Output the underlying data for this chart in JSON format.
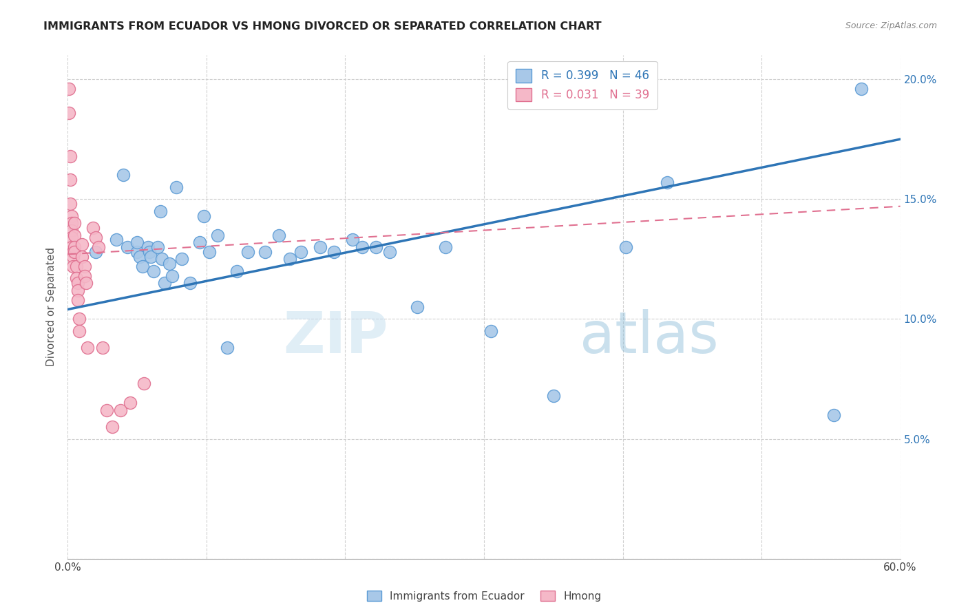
{
  "title": "IMMIGRANTS FROM ECUADOR VS HMONG DIVORCED OR SEPARATED CORRELATION CHART",
  "source": "Source: ZipAtlas.com",
  "ylabel": "Divorced or Separated",
  "legend_ecuador": "Immigrants from Ecuador",
  "legend_hmong": "Hmong",
  "r_ecuador": 0.399,
  "n_ecuador": 46,
  "r_hmong": 0.031,
  "n_hmong": 39,
  "xlim": [
    0.0,
    0.6
  ],
  "ylim": [
    0.0,
    0.21
  ],
  "xticks": [
    0.0,
    0.1,
    0.2,
    0.3,
    0.4,
    0.5,
    0.6
  ],
  "yticks": [
    0.0,
    0.05,
    0.1,
    0.15,
    0.2
  ],
  "ecuador_color": "#a8c8e8",
  "ecuador_edge_color": "#5b9bd5",
  "ecuador_line_color": "#2e75b6",
  "hmong_color": "#f5b8c8",
  "hmong_edge_color": "#e07090",
  "hmong_line_color": "#e07090",
  "watermark_zip": "ZIP",
  "watermark_atlas": "atlas",
  "ecuador_x": [
    0.02,
    0.035,
    0.04,
    0.043,
    0.05,
    0.05,
    0.052,
    0.054,
    0.058,
    0.059,
    0.06,
    0.062,
    0.065,
    0.067,
    0.068,
    0.07,
    0.073,
    0.075,
    0.078,
    0.082,
    0.088,
    0.095,
    0.098,
    0.102,
    0.108,
    0.115,
    0.122,
    0.13,
    0.142,
    0.152,
    0.16,
    0.168,
    0.182,
    0.192,
    0.205,
    0.212,
    0.222,
    0.232,
    0.252,
    0.272,
    0.305,
    0.35,
    0.402,
    0.432,
    0.552,
    0.572
  ],
  "ecuador_y": [
    0.128,
    0.133,
    0.16,
    0.13,
    0.128,
    0.132,
    0.126,
    0.122,
    0.13,
    0.128,
    0.126,
    0.12,
    0.13,
    0.145,
    0.125,
    0.115,
    0.123,
    0.118,
    0.155,
    0.125,
    0.115,
    0.132,
    0.143,
    0.128,
    0.135,
    0.088,
    0.12,
    0.128,
    0.128,
    0.135,
    0.125,
    0.128,
    0.13,
    0.128,
    0.133,
    0.13,
    0.13,
    0.128,
    0.105,
    0.13,
    0.095,
    0.068,
    0.13,
    0.157,
    0.06,
    0.196
  ],
  "hmong_x": [
    0.001,
    0.001,
    0.002,
    0.002,
    0.002,
    0.003,
    0.003,
    0.003,
    0.003,
    0.003,
    0.004,
    0.004,
    0.004,
    0.005,
    0.005,
    0.005,
    0.005,
    0.006,
    0.006,
    0.007,
    0.007,
    0.007,
    0.008,
    0.008,
    0.01,
    0.01,
    0.012,
    0.012,
    0.013,
    0.014,
    0.018,
    0.02,
    0.022,
    0.025,
    0.028,
    0.032,
    0.038,
    0.045,
    0.055
  ],
  "hmong_y": [
    0.196,
    0.186,
    0.168,
    0.158,
    0.148,
    0.143,
    0.14,
    0.137,
    0.134,
    0.13,
    0.128,
    0.126,
    0.122,
    0.14,
    0.135,
    0.13,
    0.128,
    0.122,
    0.117,
    0.115,
    0.112,
    0.108,
    0.1,
    0.095,
    0.131,
    0.126,
    0.122,
    0.118,
    0.115,
    0.088,
    0.138,
    0.134,
    0.13,
    0.088,
    0.062,
    0.055,
    0.062,
    0.065,
    0.073
  ]
}
